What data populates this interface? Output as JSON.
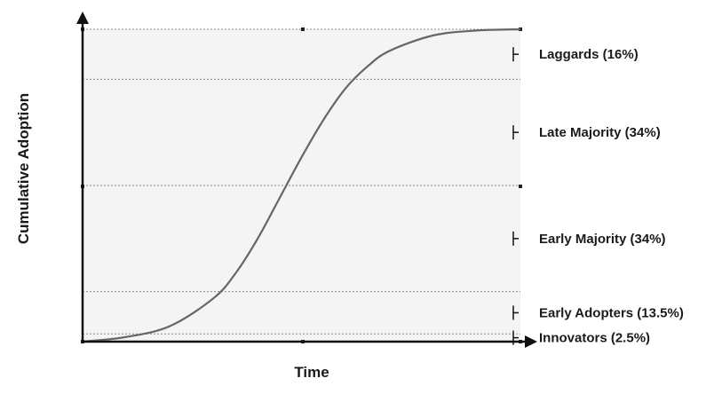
{
  "axes": {
    "x_title": "Time",
    "y_title": "Cumulative Adoption"
  },
  "chart_data": {
    "type": "line",
    "curve_shape": "s-curve",
    "y_unit": "percent of adopters",
    "ylim": [
      0,
      100
    ],
    "series": [
      {
        "x_relative": [
          0,
          0.1,
          0.2,
          0.3,
          0.35,
          0.4,
          0.45,
          0.5,
          0.55,
          0.6,
          0.65,
          0.7,
          0.8,
          0.9,
          1
        ],
        "y": [
          0,
          1.5,
          5,
          14,
          22,
          33,
          46,
          59,
          71,
          81,
          88,
          93,
          98,
          99.6,
          100
        ]
      }
    ],
    "segments": [
      {
        "label": "Innovators (2.5%)",
        "share": 2.5,
        "cumulative_top": 2.5
      },
      {
        "label": "Early Adopters (13.5%)",
        "share": 13.5,
        "cumulative_top": 16
      },
      {
        "label": "Early Majority (34%)",
        "share": 34,
        "cumulative_top": 50
      },
      {
        "label": "Late Majority (34%)",
        "share": 34,
        "cumulative_top": 84
      },
      {
        "label": "Laggards (16%)",
        "share": 16,
        "cumulative_top": 100
      }
    ],
    "grid": "dotted horizontal lines at segment boundaries",
    "colors": {
      "plot_background": "#f4f4f4",
      "curve": "#666666",
      "grid": "#8a8a8a",
      "axis": "#111111",
      "text": "#1a1a1a"
    }
  }
}
